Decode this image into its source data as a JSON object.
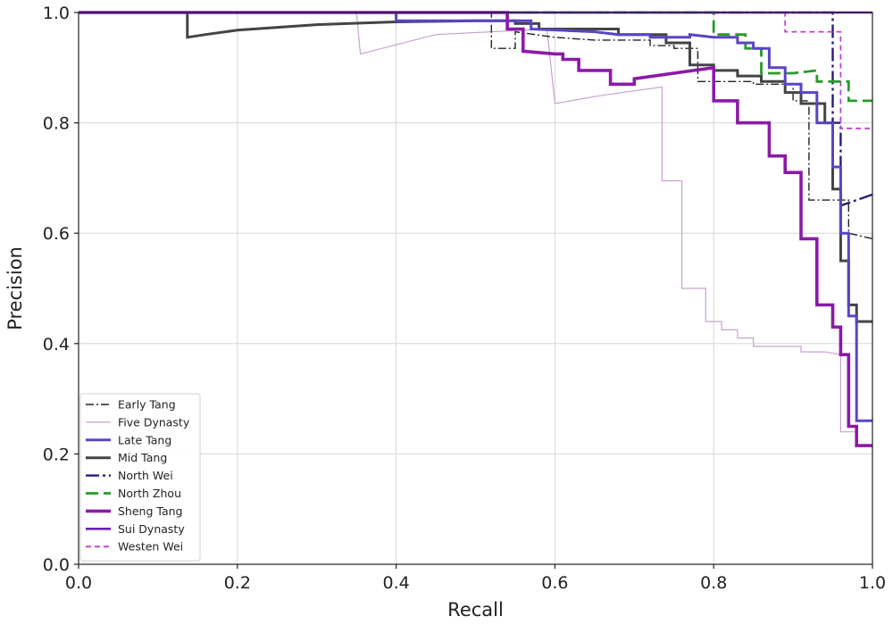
{
  "chart_data": {
    "type": "line",
    "title": "",
    "xlabel": "Recall",
    "ylabel": "Precision",
    "xlim": [
      0.0,
      1.0
    ],
    "ylim": [
      0.0,
      1.0
    ],
    "grid": true,
    "legend_position": "bottom-left",
    "x_ticks": [
      {
        "value": 0.0,
        "label": "0.0"
      },
      {
        "value": 0.2,
        "label": "0.2"
      },
      {
        "value": 0.4,
        "label": "0.4"
      },
      {
        "value": 0.6,
        "label": "0.6"
      },
      {
        "value": 0.8,
        "label": "0.8"
      },
      {
        "value": 1.0,
        "label": "1.0"
      }
    ],
    "y_ticks": [
      {
        "value": 0.0,
        "label": "0.0"
      },
      {
        "value": 0.2,
        "label": "0.2"
      },
      {
        "value": 0.4,
        "label": "0.4"
      },
      {
        "value": 0.6,
        "label": "0.6"
      },
      {
        "value": 0.8,
        "label": "0.8"
      },
      {
        "value": 1.0,
        "label": "1.0"
      }
    ],
    "series": [
      {
        "name": "Five Dynasty",
        "color": "#c9a0cf",
        "dash": "none",
        "width": 1.2,
        "points": [
          [
            0,
            1.0
          ],
          [
            0.35,
            1.0
          ],
          [
            0.355,
            0.925
          ],
          [
            0.45,
            0.96
          ],
          [
            0.59,
            0.97
          ],
          [
            0.6,
            0.835
          ],
          [
            0.66,
            0.85
          ],
          [
            0.735,
            0.865
          ],
          [
            0.735,
            0.695
          ],
          [
            0.76,
            0.695
          ],
          [
            0.76,
            0.5
          ],
          [
            0.79,
            0.5
          ],
          [
            0.79,
            0.44
          ],
          [
            0.81,
            0.44
          ],
          [
            0.81,
            0.425
          ],
          [
            0.83,
            0.425
          ],
          [
            0.83,
            0.41
          ],
          [
            0.85,
            0.41
          ],
          [
            0.85,
            0.395
          ],
          [
            0.88,
            0.395
          ],
          [
            0.91,
            0.395
          ],
          [
            0.91,
            0.385
          ],
          [
            0.94,
            0.385
          ],
          [
            0.96,
            0.38
          ],
          [
            0.96,
            0.24
          ],
          [
            0.98,
            0.24
          ],
          [
            0.98,
            0.22
          ]
        ]
      },
      {
        "name": "Early Tang",
        "color": "#222222",
        "dash": "9,3,2,3",
        "width": 1.4,
        "points": [
          [
            0,
            1.0
          ],
          [
            0.52,
            1.0
          ],
          [
            0.52,
            0.935
          ],
          [
            0.55,
            0.935
          ],
          [
            0.55,
            0.965
          ],
          [
            0.6,
            0.955
          ],
          [
            0.65,
            0.95
          ],
          [
            0.7,
            0.95
          ],
          [
            0.72,
            0.95
          ],
          [
            0.72,
            0.94
          ],
          [
            0.75,
            0.94
          ],
          [
            0.75,
            0.935
          ],
          [
            0.78,
            0.935
          ],
          [
            0.78,
            0.875
          ],
          [
            0.85,
            0.875
          ],
          [
            0.85,
            0.87
          ],
          [
            0.9,
            0.87
          ],
          [
            0.9,
            0.84
          ],
          [
            0.92,
            0.84
          ],
          [
            0.92,
            0.66
          ],
          [
            0.94,
            0.66
          ],
          [
            0.97,
            0.66
          ],
          [
            0.97,
            0.6
          ],
          [
            1.0,
            0.59
          ]
        ]
      },
      {
        "name": "North Wei",
        "color": "#2a1b78",
        "dash": "15,4,3,4",
        "width": 2.4,
        "points": [
          [
            0,
            1.0
          ],
          [
            0.95,
            1.0
          ],
          [
            0.95,
            0.8
          ],
          [
            0.96,
            0.8
          ],
          [
            0.96,
            0.65
          ],
          [
            0.98,
            0.66
          ],
          [
            1.0,
            0.67
          ]
        ]
      },
      {
        "name": "Westen Wei",
        "color": "#c040d0",
        "dash": "6,4",
        "width": 1.8,
        "points": [
          [
            0,
            1.0
          ],
          [
            0.89,
            1.0
          ],
          [
            0.89,
            0.965
          ],
          [
            0.93,
            0.965
          ],
          [
            0.96,
            0.965
          ],
          [
            0.96,
            0.79
          ],
          [
            1.0,
            0.79
          ]
        ]
      },
      {
        "name": "North Zhou",
        "color": "#2a9a2a",
        "dash": "14,6",
        "width": 2.8,
        "points": [
          [
            0,
            1.0
          ],
          [
            0.8,
            1.0
          ],
          [
            0.8,
            0.96
          ],
          [
            0.84,
            0.96
          ],
          [
            0.84,
            0.935
          ],
          [
            0.86,
            0.935
          ],
          [
            0.86,
            0.89
          ],
          [
            0.9,
            0.89
          ],
          [
            0.93,
            0.895
          ],
          [
            0.93,
            0.875
          ],
          [
            0.97,
            0.875
          ],
          [
            0.97,
            0.84
          ],
          [
            1.0,
            0.84
          ]
        ]
      },
      {
        "name": "Mid Tang",
        "color": "#444444",
        "dash": "none",
        "width": 3.0,
        "points": [
          [
            0,
            1.0
          ],
          [
            0.137,
            1.0
          ],
          [
            0.137,
            0.955
          ],
          [
            0.16,
            0.96
          ],
          [
            0.2,
            0.968
          ],
          [
            0.3,
            0.978
          ],
          [
            0.4,
            0.983
          ],
          [
            0.5,
            0.985
          ],
          [
            0.55,
            0.985
          ],
          [
            0.55,
            0.98
          ],
          [
            0.58,
            0.98
          ],
          [
            0.58,
            0.97
          ],
          [
            0.68,
            0.97
          ],
          [
            0.68,
            0.96
          ],
          [
            0.74,
            0.96
          ],
          [
            0.74,
            0.945
          ],
          [
            0.77,
            0.945
          ],
          [
            0.77,
            0.905
          ],
          [
            0.8,
            0.905
          ],
          [
            0.8,
            0.895
          ],
          [
            0.83,
            0.895
          ],
          [
            0.83,
            0.885
          ],
          [
            0.86,
            0.885
          ],
          [
            0.86,
            0.875
          ],
          [
            0.89,
            0.875
          ],
          [
            0.89,
            0.855
          ],
          [
            0.91,
            0.855
          ],
          [
            0.91,
            0.835
          ],
          [
            0.94,
            0.835
          ],
          [
            0.94,
            0.8
          ],
          [
            0.95,
            0.8
          ],
          [
            0.95,
            0.68
          ],
          [
            0.96,
            0.68
          ],
          [
            0.96,
            0.55
          ],
          [
            0.97,
            0.55
          ],
          [
            0.97,
            0.47
          ],
          [
            0.98,
            0.47
          ],
          [
            0.98,
            0.44
          ],
          [
            1.0,
            0.44
          ]
        ]
      },
      {
        "name": "Late Tang",
        "color": "#5a44c4",
        "dash": "none",
        "width": 3.0,
        "points": [
          [
            0,
            1.0
          ],
          [
            0.4,
            1.0
          ],
          [
            0.4,
            0.985
          ],
          [
            0.45,
            0.985
          ],
          [
            0.55,
            0.985
          ],
          [
            0.57,
            0.985
          ],
          [
            0.57,
            0.97
          ],
          [
            0.65,
            0.965
          ],
          [
            0.68,
            0.96
          ],
          [
            0.72,
            0.96
          ],
          [
            0.72,
            0.955
          ],
          [
            0.77,
            0.955
          ],
          [
            0.77,
            0.96
          ],
          [
            0.8,
            0.955
          ],
          [
            0.83,
            0.955
          ],
          [
            0.83,
            0.945
          ],
          [
            0.85,
            0.945
          ],
          [
            0.85,
            0.935
          ],
          [
            0.87,
            0.935
          ],
          [
            0.87,
            0.9
          ],
          [
            0.89,
            0.9
          ],
          [
            0.89,
            0.87
          ],
          [
            0.91,
            0.87
          ],
          [
            0.91,
            0.855
          ],
          [
            0.93,
            0.855
          ],
          [
            0.93,
            0.8
          ],
          [
            0.95,
            0.8
          ],
          [
            0.95,
            0.72
          ],
          [
            0.96,
            0.72
          ],
          [
            0.96,
            0.6
          ],
          [
            0.97,
            0.6
          ],
          [
            0.97,
            0.45
          ],
          [
            0.98,
            0.45
          ],
          [
            0.98,
            0.26
          ],
          [
            1.0,
            0.26
          ]
        ]
      },
      {
        "name": "Sheng Tang",
        "color": "#8b1aa8",
        "dash": "none",
        "width": 3.6,
        "points": [
          [
            0,
            1.0
          ],
          [
            0.54,
            1.0
          ],
          [
            0.54,
            0.97
          ],
          [
            0.56,
            0.97
          ],
          [
            0.56,
            0.93
          ],
          [
            0.6,
            0.925
          ],
          [
            0.61,
            0.925
          ],
          [
            0.61,
            0.915
          ],
          [
            0.63,
            0.915
          ],
          [
            0.63,
            0.895
          ],
          [
            0.67,
            0.895
          ],
          [
            0.67,
            0.87
          ],
          [
            0.7,
            0.87
          ],
          [
            0.7,
            0.88
          ],
          [
            0.8,
            0.9
          ],
          [
            0.8,
            0.84
          ],
          [
            0.83,
            0.84
          ],
          [
            0.83,
            0.8
          ],
          [
            0.87,
            0.8
          ],
          [
            0.87,
            0.74
          ],
          [
            0.89,
            0.74
          ],
          [
            0.89,
            0.71
          ],
          [
            0.91,
            0.71
          ],
          [
            0.91,
            0.59
          ],
          [
            0.93,
            0.59
          ],
          [
            0.93,
            0.47
          ],
          [
            0.95,
            0.47
          ],
          [
            0.95,
            0.43
          ],
          [
            0.96,
            0.43
          ],
          [
            0.96,
            0.38
          ],
          [
            0.97,
            0.38
          ],
          [
            0.97,
            0.25
          ],
          [
            0.98,
            0.25
          ],
          [
            0.98,
            0.215
          ],
          [
            1.0,
            0.215
          ]
        ]
      },
      {
        "name": "Sui Dynasty",
        "color": "#6a1fb0",
        "dash": "none",
        "width": 2.6,
        "points": [
          [
            0,
            1.0
          ],
          [
            1.0,
            1.0
          ]
        ]
      }
    ],
    "legend_order": [
      "Early Tang",
      "Five Dynasty",
      "Late Tang",
      "Mid Tang",
      "North Wei",
      "North Zhou",
      "Sheng Tang",
      "Sui Dynasty",
      "Westen Wei"
    ]
  }
}
